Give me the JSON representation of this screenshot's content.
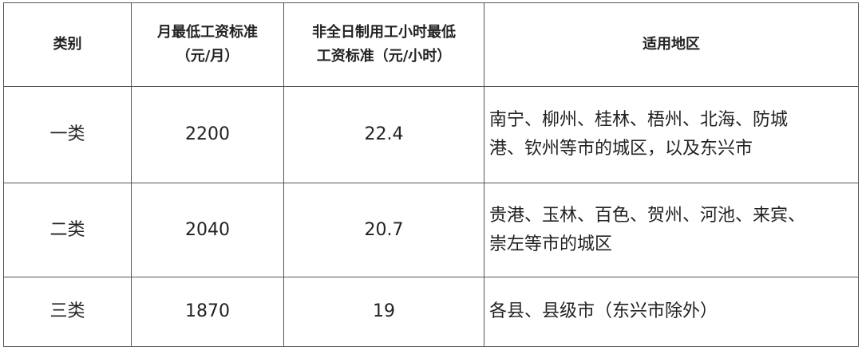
{
  "headers": [
    "类别",
    "月最低工资标准（元/月）",
    "非全日制用工小时最低工资标准（元/小时）",
    "适用地区"
  ],
  "header_lines": [
    [
      "类别"
    ],
    [
      "月最低工资标准",
      "（元/月）"
    ],
    [
      "非全日制用工小时最低",
      "工资标准（元/小时）"
    ],
    [
      "适用地区"
    ]
  ],
  "rows": [
    {
      "category": "一类",
      "monthly": "2200",
      "hourly": "22.4",
      "area_lines": [
        "南宁、柳州、桂林、梧州、北海、防城",
        "港、钦州等市的城区，以及东兴市"
      ]
    },
    {
      "category": "二类",
      "monthly": "2040",
      "hourly": "20.7",
      "area_lines": [
        "贵港、玉林、百色、贺州、河池、来宾、",
        "崇左等市的城区"
      ]
    },
    {
      "category": "三类",
      "monthly": "1870",
      "hourly": "19",
      "area_lines": [
        "各县、县级市（东兴市除外）"
      ]
    }
  ]
}
